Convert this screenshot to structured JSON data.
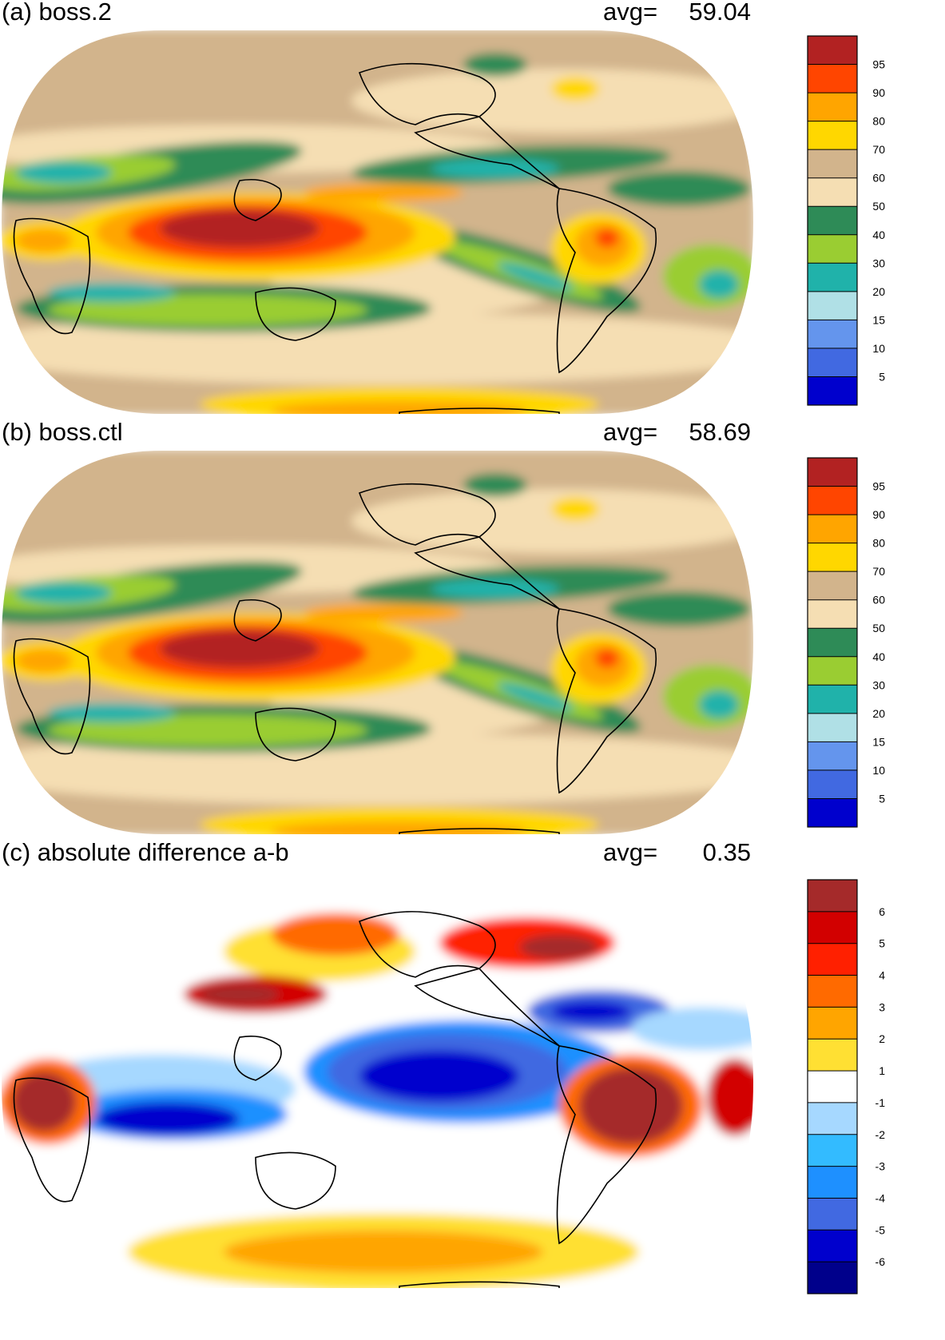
{
  "panels": [
    {
      "id": "a",
      "title": "(a) boss.2",
      "avg_label": "avg=",
      "avg_value": "59.04",
      "palette": "precip",
      "colorbar": {
        "labels": [
          "95",
          "90",
          "80",
          "70",
          "60",
          "50",
          "40",
          "30",
          "20",
          "15",
          "10",
          "5"
        ],
        "colors": [
          "#b22222",
          "#ff4500",
          "#ffa500",
          "#ffd700",
          "#d2b48c",
          "#f5deb3",
          "#2e8b57",
          "#9acd32",
          "#20b2aa",
          "#b0e0e6",
          "#6495ed",
          "#4169e1",
          "#0000cd"
        ]
      }
    },
    {
      "id": "b",
      "title": "(b) boss.ctl",
      "avg_label": "avg=",
      "avg_value": "58.69",
      "palette": "precip",
      "colorbar": {
        "labels": [
          "95",
          "90",
          "80",
          "70",
          "60",
          "50",
          "40",
          "30",
          "20",
          "15",
          "10",
          "5"
        ],
        "colors": [
          "#b22222",
          "#ff4500",
          "#ffa500",
          "#ffd700",
          "#d2b48c",
          "#f5deb3",
          "#2e8b57",
          "#9acd32",
          "#20b2aa",
          "#b0e0e6",
          "#6495ed",
          "#4169e1",
          "#0000cd"
        ]
      }
    },
    {
      "id": "c",
      "title": "(c) absolute difference a-b",
      "avg_label": "avg=",
      "avg_value": "0.35",
      "palette": "diff",
      "colorbar": {
        "labels": [
          "6",
          "5",
          "4",
          "3",
          "2",
          "1",
          "-1",
          "-2",
          "-3",
          "-4",
          "-5",
          "-6"
        ],
        "colors": [
          "#a52a2a",
          "#d20000",
          "#ff2000",
          "#ff6a00",
          "#ffa500",
          "#ffe033",
          "#ffffff",
          "#a6d8ff",
          "#33bbff",
          "#1e90ff",
          "#4169e1",
          "#0000cd",
          "#00008b"
        ]
      }
    }
  ]
}
